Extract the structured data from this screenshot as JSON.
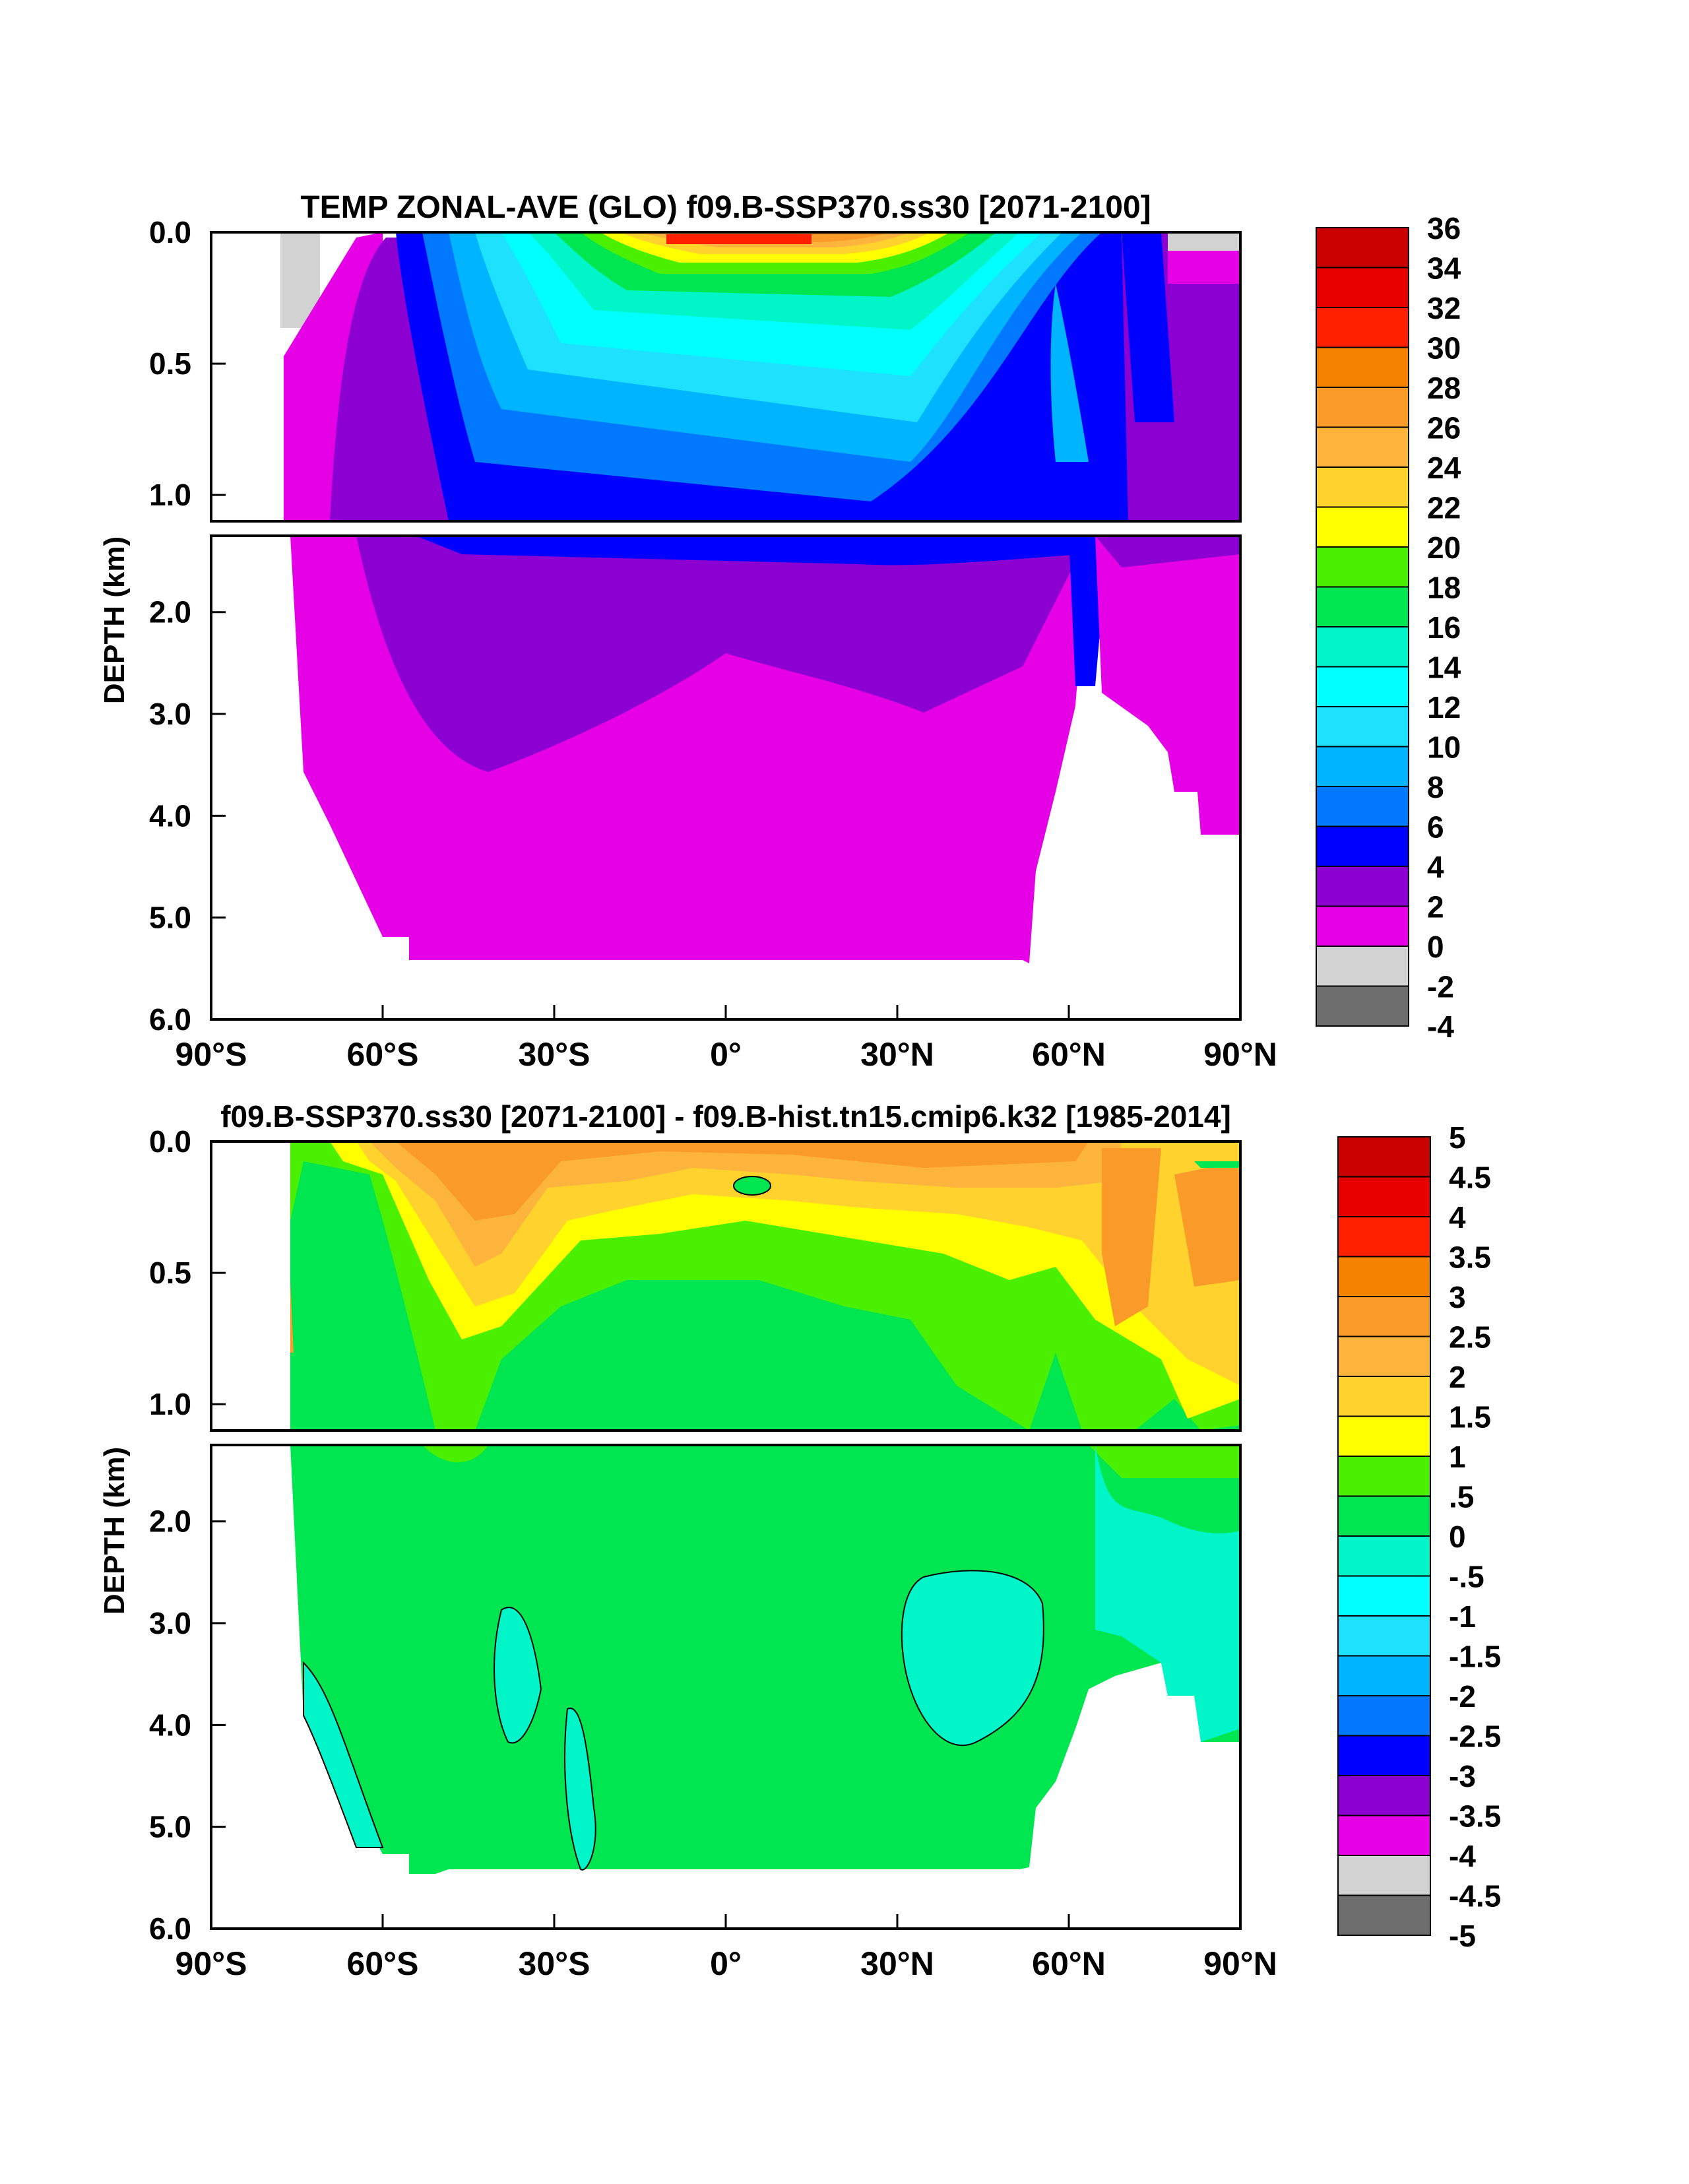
{
  "chart_data": [
    {
      "type": "heatmap",
      "title": "TEMP ZONAL-AVE (GLO) f09.B-SSP370.ss30 [2071-2100]",
      "ylabel": "DEPTH (km)",
      "xlabel": "",
      "xlim": [
        -90,
        90
      ],
      "ylim": [
        0,
        6
      ],
      "x_ticks": [
        {
          "value": -90,
          "label": "90°S"
        },
        {
          "value": -60,
          "label": "60°S"
        },
        {
          "value": -30,
          "label": "30°S"
        },
        {
          "value": 0,
          "label": "0°"
        },
        {
          "value": 30,
          "label": "30°N"
        },
        {
          "value": 60,
          "label": "60°N"
        },
        {
          "value": 90,
          "label": "90°N"
        }
      ],
      "y_ticks_upper": [
        {
          "value": 0.0,
          "label": "0.0"
        },
        {
          "value": 0.5,
          "label": "0.5"
        },
        {
          "value": 1.0,
          "label": "1.0"
        }
      ],
      "y_ticks_lower": [
        {
          "value": 2.0,
          "label": "2.0"
        },
        {
          "value": 3.0,
          "label": "3.0"
        },
        {
          "value": 4.0,
          "label": "4.0"
        },
        {
          "value": 5.0,
          "label": "5.0"
        },
        {
          "value": 6.0,
          "label": "6.0"
        }
      ],
      "upper_panel_depth_km": [
        0,
        1.1
      ],
      "lower_panel_depth_km": [
        1.25,
        6
      ],
      "colorbar": {
        "labels": [
          "36",
          "34",
          "32",
          "30",
          "28",
          "26",
          "24",
          "22",
          "20",
          "18",
          "16",
          "14",
          "12",
          "10",
          "8",
          "6",
          "4",
          "2",
          "0",
          "-2",
          "-4"
        ],
        "colors": [
          "#c80000",
          "#e60000",
          "#ff2000",
          "#f58200",
          "#fa9a28",
          "#fdb43c",
          "#ffd22d",
          "#ffff00",
          "#4bf000",
          "#00e650",
          "#00f5c8",
          "#00ffff",
          "#1ee1ff",
          "#00b4ff",
          "#0078ff",
          "#0000ff",
          "#8c00d2",
          "#e600e6",
          "#d2d2d2",
          "#6e6e6e"
        ]
      }
    },
    {
      "type": "heatmap",
      "title": "f09.B-SSP370.ss30 [2071-2100] - f09.B-hist.tn15.cmip6.k32 [1985-2014]",
      "ylabel": "DEPTH (km)",
      "xlabel": "",
      "xlim": [
        -90,
        90
      ],
      "ylim": [
        0,
        6
      ],
      "x_ticks": [
        {
          "value": -90,
          "label": "90°S"
        },
        {
          "value": -60,
          "label": "60°S"
        },
        {
          "value": -30,
          "label": "30°S"
        },
        {
          "value": 0,
          "label": "0°"
        },
        {
          "value": 30,
          "label": "30°N"
        },
        {
          "value": 60,
          "label": "60°N"
        },
        {
          "value": 90,
          "label": "90°N"
        }
      ],
      "y_ticks_upper": [
        {
          "value": 0.0,
          "label": "0.0"
        },
        {
          "value": 0.5,
          "label": "0.5"
        },
        {
          "value": 1.0,
          "label": "1.0"
        }
      ],
      "y_ticks_lower": [
        {
          "value": 2.0,
          "label": "2.0"
        },
        {
          "value": 3.0,
          "label": "3.0"
        },
        {
          "value": 4.0,
          "label": "4.0"
        },
        {
          "value": 5.0,
          "label": "5.0"
        },
        {
          "value": 6.0,
          "label": "6.0"
        }
      ],
      "upper_panel_depth_km": [
        0,
        1.1
      ],
      "lower_panel_depth_km": [
        1.25,
        6
      ],
      "colorbar": {
        "labels": [
          "5",
          "4.5",
          "4",
          "3.5",
          "3",
          "2.5",
          "2",
          "1.5",
          "1",
          ".5",
          "0",
          "-.5",
          "-1",
          "-1.5",
          "-2",
          "-2.5",
          "-3",
          "-3.5",
          "-4",
          "-4.5",
          "-5"
        ],
        "colors": [
          "#c80000",
          "#e60000",
          "#ff2000",
          "#f58200",
          "#fa9a28",
          "#fdb43c",
          "#ffd22d",
          "#ffff00",
          "#4bf000",
          "#00e650",
          "#00f5c8",
          "#00ffff",
          "#1ee1ff",
          "#00b4ff",
          "#0078ff",
          "#0000ff",
          "#8c00d2",
          "#e600e6",
          "#d2d2d2",
          "#6e6e6e"
        ]
      }
    }
  ]
}
